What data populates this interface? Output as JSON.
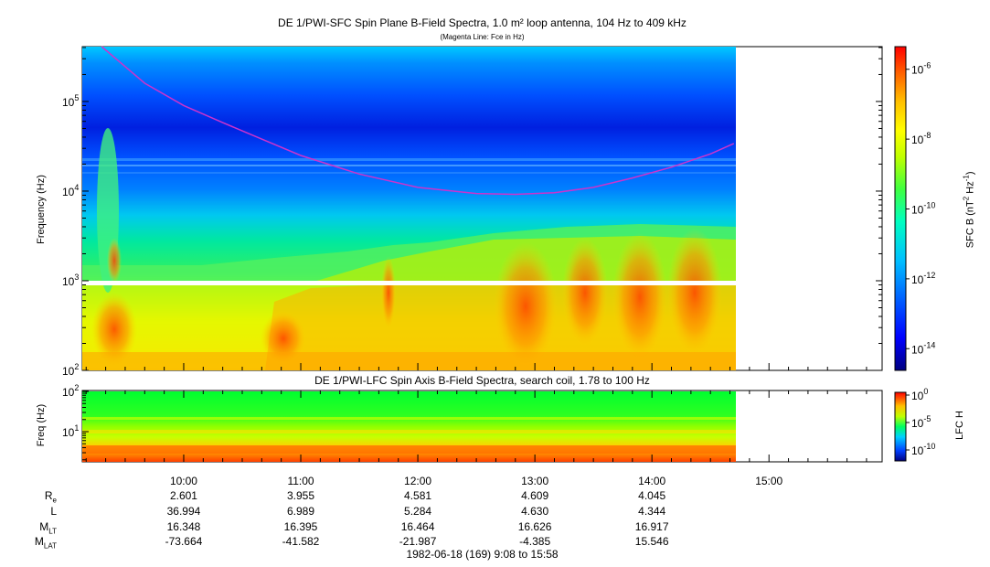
{
  "title": "DE 1/PWI-SFC  Spin Plane B-Field Spectra, 1.0 m² loop antenna, 104 Hz to 409 kHz",
  "subtitle": "(Magenta Line: Fce in Hz)",
  "panel2_title": "DE 1/PWI-LFC  Spin Axis B-Field Spectra, search coil, 1.78 to 100 Hz",
  "footer": "1982-06-18 (169) 9:08 to 15:58",
  "colors": {
    "magenta_line": "#cc33cc",
    "gap_white": "#ffffff",
    "colormap": [
      "#000080",
      "#0000ff",
      "#0060ff",
      "#00c0ff",
      "#00ffc0",
      "#40ff40",
      "#c0ff00",
      "#ffff00",
      "#ffc000",
      "#ff6000",
      "#ff0000"
    ]
  },
  "chart_data": [
    {
      "type": "heatmap",
      "panel": "SFC",
      "ylabel": "Frequency (Hz)",
      "y_scale": "log",
      "ylim": [
        100,
        409000
      ],
      "y_ticks": [
        {
          "value": 100,
          "base": "10",
          "exp": "2"
        },
        {
          "value": 1000,
          "base": "10",
          "exp": "3"
        },
        {
          "value": 10000,
          "base": "10",
          "exp": "4"
        },
        {
          "value": 100000,
          "base": "10",
          "exp": "5"
        }
      ],
      "xlim": [
        "09:08",
        "15:58"
      ],
      "data_end": "14:42",
      "gap_frequency_band_hz": [
        880,
        1000
      ],
      "magenta_fce_hz": {
        "x": [
          "09:18",
          "09:40",
          "10:00",
          "10:20",
          "10:40",
          "11:00",
          "11:30",
          "12:00",
          "12:30",
          "12:50",
          "13:10",
          "13:30",
          "13:50",
          "14:10",
          "14:30",
          "14:42"
        ],
        "y": [
          409000,
          160000,
          90000,
          58000,
          38000,
          25000,
          15500,
          11000,
          9400,
          9200,
          9600,
          11000,
          14000,
          18500,
          26000,
          34000
        ]
      },
      "colorbar": {
        "label": "SFC B (nT",
        "label_sup1": "2",
        "label_mid": " Hz",
        "label_sup2": "-1",
        "label_end": ")",
        "scale": "log",
        "ticks": [
          {
            "base": "10",
            "exp": "-6"
          },
          {
            "base": "10",
            "exp": "-8"
          },
          {
            "base": "10",
            "exp": "-10"
          },
          {
            "base": "10",
            "exp": "-12"
          },
          {
            "base": "10",
            "exp": "-14"
          }
        ]
      }
    },
    {
      "type": "heatmap",
      "panel": "LFC",
      "ylabel": "Freq (Hz)",
      "y_scale": "log",
      "ylim": [
        1.78,
        100
      ],
      "y_ticks": [
        {
          "value": 10,
          "base": "10",
          "exp": "1"
        },
        {
          "value": 100,
          "base": "10",
          "exp": "2"
        }
      ],
      "data_end": "14:42",
      "colorbar": {
        "label": "LFC H",
        "scale": "log",
        "ticks": [
          {
            "base": "10",
            "exp": "0"
          },
          {
            "base": "10",
            "exp": "-5"
          },
          {
            "base": "10",
            "exp": "-10"
          }
        ]
      }
    }
  ],
  "x_ticks": [
    "10:00",
    "11:00",
    "12:00",
    "13:00",
    "14:00",
    "15:00"
  ],
  "ephemeris": {
    "labels": [
      {
        "main": "R",
        "sub": "e"
      },
      {
        "main": "L",
        "sub": ""
      },
      {
        "main": "M",
        "sub": "LT"
      },
      {
        "main": "M",
        "sub": "LAT"
      }
    ],
    "rows": [
      [
        "2.601",
        "3.955",
        "4.581",
        "4.609",
        "4.045"
      ],
      [
        "36.994",
        "6.989",
        "5.284",
        "4.630",
        "4.344"
      ],
      [
        "16.348",
        "16.395",
        "16.464",
        "16.626",
        "16.917"
      ],
      [
        "-73.664",
        "-41.582",
        "-21.987",
        "-4.385",
        "15.546"
      ]
    ]
  }
}
